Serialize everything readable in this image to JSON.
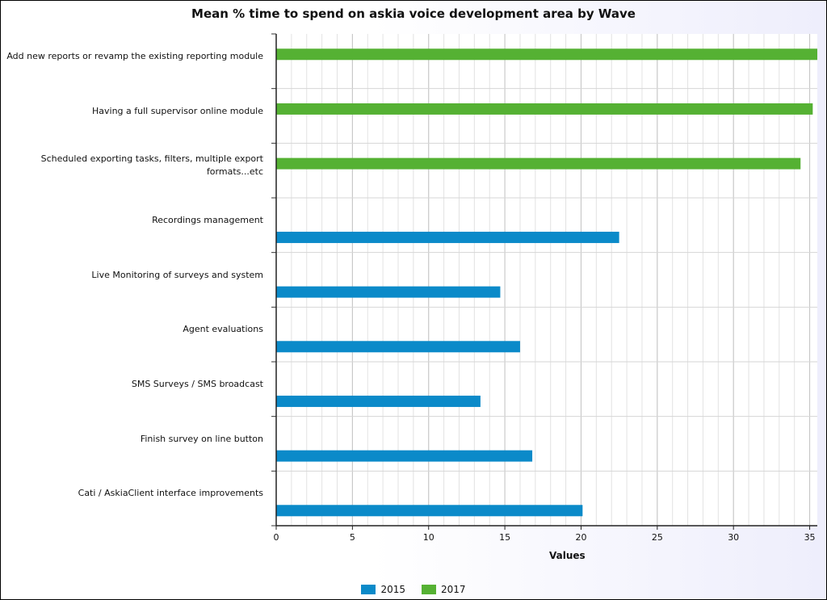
{
  "chart_data": {
    "type": "bar",
    "orientation": "horizontal",
    "title": "Mean % time to spend on askia voice development area by Wave",
    "xlabel": "Values",
    "xlim": [
      0,
      35.5
    ],
    "xticks": [
      0,
      5,
      10,
      15,
      20,
      25,
      30,
      35
    ],
    "grid": true,
    "legend_position": "bottom",
    "categories": [
      [
        "Add new reports or revamp the existing reporting module"
      ],
      [
        "Having a full supervisor online module"
      ],
      [
        "Scheduled exporting tasks, filters, multiple export",
        "formats...etc"
      ],
      [
        "Recordings management"
      ],
      [
        "Live Monitoring of surveys and system"
      ],
      [
        "Agent evaluations"
      ],
      [
        "SMS Surveys / SMS broadcast"
      ],
      [
        "Finish survey on line button"
      ],
      [
        "Cati / AskiaClient interface improvements"
      ]
    ],
    "series": [
      {
        "name": "2015",
        "color": "#0b8ac9",
        "values": [
          null,
          null,
          null,
          22.5,
          14.7,
          16.0,
          13.4,
          16.8,
          20.1
        ]
      },
      {
        "name": "2017",
        "color": "#55b133",
        "values": [
          35.5,
          35.2,
          34.4,
          null,
          null,
          null,
          null,
          null,
          null
        ]
      }
    ]
  }
}
